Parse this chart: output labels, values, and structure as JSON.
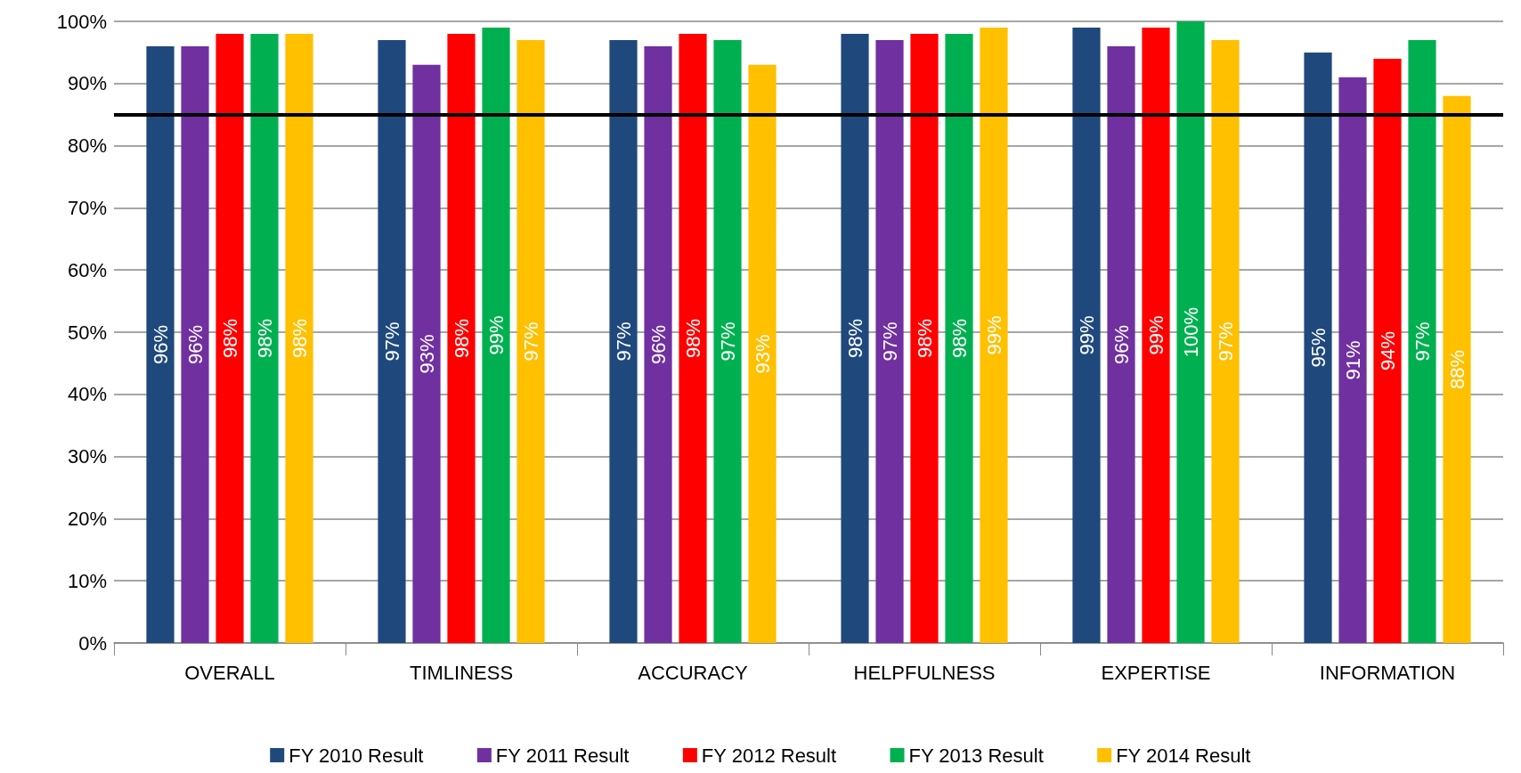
{
  "chart_data": {
    "type": "bar",
    "categories": [
      "OVERALL",
      "TIMLINESS",
      "ACCURACY",
      "HELPFULNESS",
      "EXPERTISE",
      "INFORMATION"
    ],
    "series": [
      {
        "name": "FY 2010 Result",
        "color": "#1f497d",
        "values": [
          96,
          97,
          97,
          98,
          99,
          95
        ],
        "value_labels": [
          "96%",
          "97%",
          "97%",
          "98%",
          "99%",
          "95%"
        ]
      },
      {
        "name": "FY 2011 Result",
        "color": "#7030a0",
        "values": [
          96,
          93,
          96,
          97,
          96,
          91
        ],
        "value_labels": [
          "96%",
          "93%",
          "96%",
          "97%",
          "96%",
          "91%"
        ]
      },
      {
        "name": "FY 2012 Result",
        "color": "#ff0000",
        "values": [
          98,
          98,
          98,
          98,
          99,
          94
        ],
        "value_labels": [
          "98%",
          "98%",
          "98%",
          "98%",
          "99%",
          "94%"
        ]
      },
      {
        "name": "FY 2013 Result",
        "color": "#00b050",
        "values": [
          98,
          99,
          97,
          98,
          100,
          97
        ],
        "value_labels": [
          "98%",
          "99%",
          "97%",
          "98%",
          "100%",
          "97%"
        ]
      },
      {
        "name": "FY 2014 Result",
        "color": "#ffc000",
        "values": [
          98,
          97,
          93,
          99,
          97,
          88
        ],
        "value_labels": [
          "98%",
          "97%",
          "93%",
          "99%",
          "97%",
          "88%"
        ]
      }
    ],
    "ylim": [
      0,
      100
    ],
    "yticks": [
      {
        "value": 0,
        "label": "0%"
      },
      {
        "value": 10,
        "label": "10%"
      },
      {
        "value": 20,
        "label": "20%"
      },
      {
        "value": 30,
        "label": "30%"
      },
      {
        "value": 40,
        "label": "40%"
      },
      {
        "value": 50,
        "label": "50%"
      },
      {
        "value": 60,
        "label": "60%"
      },
      {
        "value": 70,
        "label": "70%"
      },
      {
        "value": 80,
        "label": "80%"
      },
      {
        "value": 90,
        "label": "90%"
      },
      {
        "value": 100,
        "label": "100%"
      }
    ],
    "ref_lines": [
      {
        "axis": "y",
        "value": 85,
        "color": "#000000"
      }
    ],
    "grid": "y",
    "legend": "bottom"
  }
}
